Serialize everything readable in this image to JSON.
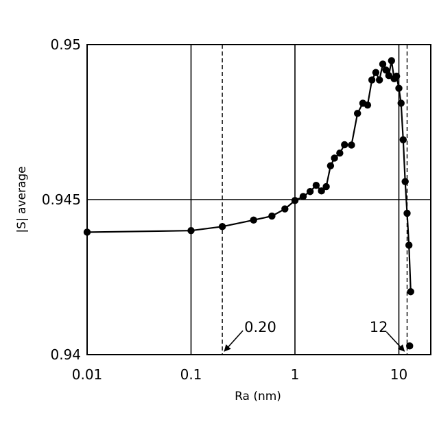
{
  "chart_data": {
    "type": "line",
    "title": "",
    "xlabel": "Ra (nm)",
    "ylabel": "|S| average",
    "x_scale": "log",
    "xlim": [
      0.01,
      20
    ],
    "ylim": [
      0.94,
      0.95
    ],
    "x_tick_labels": [
      "0.01",
      "0.1",
      "1",
      "10"
    ],
    "y_tick_labels": [
      "0.94",
      "0.945",
      "0.95"
    ],
    "grid": true,
    "legend": "none",
    "annotations": [
      {
        "label": "0.20",
        "x": 0.2
      },
      {
        "label": "12",
        "x": 12
      }
    ],
    "series": [
      {
        "color": "#000000",
        "x": [
          0.01,
          0.1,
          0.2,
          0.4,
          0.6,
          0.8,
          1.0,
          1.2,
          1.4,
          1.6,
          1.8,
          2.0,
          2.2,
          2.4,
          2.7,
          3.0,
          3.5,
          4.0,
          4.5,
          5.0,
          5.5,
          6.0,
          6.5,
          7.0,
          7.5,
          8.0,
          8.5,
          9.0,
          9.5,
          10.0,
          10.5,
          11.0,
          11.5,
          12.0,
          12.5,
          13.0
        ],
        "y": [
          0.94395,
          0.944,
          0.94413,
          0.94434,
          0.94447,
          0.9447,
          0.94497,
          0.9451,
          0.94526,
          0.94546,
          0.94528,
          0.94542,
          0.94609,
          0.94634,
          0.9465,
          0.94677,
          0.94676,
          0.94778,
          0.94811,
          0.94805,
          0.94886,
          0.9491,
          0.94886,
          0.94937,
          0.94918,
          0.949,
          0.94948,
          0.9489,
          0.94898,
          0.94859,
          0.94811,
          0.94693,
          0.94558,
          0.94456,
          0.94353,
          0.94203
        ]
      },
      {
        "color": "#000000",
        "x": [
          12.7
        ],
        "y": [
          0.94028
        ]
      }
    ]
  }
}
